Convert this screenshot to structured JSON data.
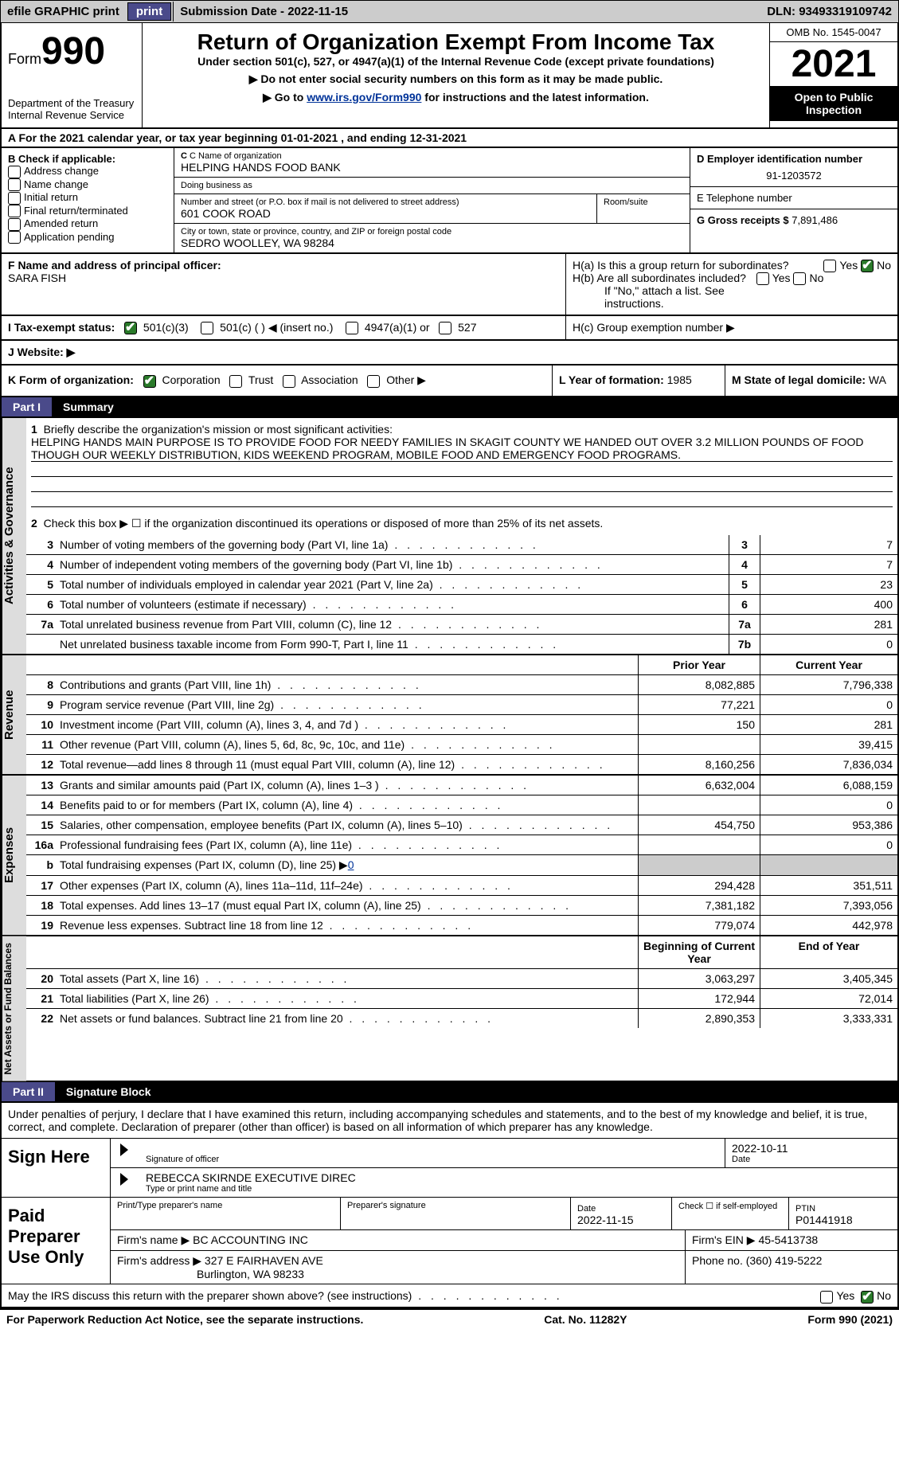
{
  "topbar": {
    "efile": "efile GRAPHIC print",
    "submission_label": "Submission Date - ",
    "submission_date": "2022-11-15",
    "dln_label": "DLN: ",
    "dln": "93493319109742"
  },
  "header": {
    "form": "Form",
    "form_no": "990",
    "dept": "Department of the Treasury",
    "irs": "Internal Revenue Service",
    "title": "Return of Organization Exempt From Income Tax",
    "sub1": "Under section 501(c), 527, or 4947(a)(1) of the Internal Revenue Code (except private foundations)",
    "sub2": "▶ Do not enter social security numbers on this form as it may be made public.",
    "sub3_pre": "▶ Go to ",
    "sub3_link": "www.irs.gov/Form990",
    "sub3_post": " for instructions and the latest information.",
    "omb": "OMB No. 1545-0047",
    "year": "2021",
    "open": "Open to Public Inspection"
  },
  "a": {
    "text_pre": "A For the 2021 calendar year, or tax year beginning ",
    "begin": "01-01-2021",
    "mid": " , and ending ",
    "end": "12-31-2021"
  },
  "b": {
    "label": "B Check if applicable:",
    "opts": [
      "Address change",
      "Name change",
      "Initial return",
      "Final return/terminated",
      "Amended return",
      "Application pending"
    ]
  },
  "c": {
    "name_lbl": "C Name of organization",
    "name": "HELPING HANDS FOOD BANK",
    "dba_lbl": "Doing business as",
    "dba": "",
    "street_lbl": "Number and street (or P.O. box if mail is not delivered to street address)",
    "room_lbl": "Room/suite",
    "street": "601 COOK ROAD",
    "city_lbl": "City or town, state or province, country, and ZIP or foreign postal code",
    "city": "SEDRO WOOLLEY, WA  98284"
  },
  "d": {
    "lbl": "D Employer identification number",
    "val": "91-1203572"
  },
  "e": {
    "lbl": "E Telephone number",
    "val": ""
  },
  "g": {
    "lbl": "G Gross receipts $ ",
    "val": "7,891,486"
  },
  "f": {
    "lbl": "F  Name and address of principal officer:",
    "name": "SARA FISH"
  },
  "h": {
    "a": "H(a)  Is this a group return for subordinates?",
    "b": "H(b)  Are all subordinates included?",
    "note": "If \"No,\" attach a list. See instructions.",
    "c": "H(c)  Group exemption number ▶",
    "yes": "Yes",
    "no": "No"
  },
  "i": {
    "lbl": "I   Tax-exempt status:",
    "o1": "501(c)(3)",
    "o2": "501(c) (  ) ◀ (insert no.)",
    "o3": "4947(a)(1) or",
    "o4": "527"
  },
  "j": {
    "lbl": "J   Website: ▶"
  },
  "k": {
    "lbl": "K Form of organization:",
    "o1": "Corporation",
    "o2": "Trust",
    "o3": "Association",
    "o4": "Other ▶"
  },
  "l": {
    "lbl": "L Year of formation: ",
    "val": "1985"
  },
  "m": {
    "lbl": "M State of legal domicile: ",
    "val": "WA"
  },
  "part1": {
    "label": "Part I",
    "title": "Summary"
  },
  "part2": {
    "label": "Part II",
    "title": "Signature Block"
  },
  "tabs": {
    "ag": "Activities & Governance",
    "rev": "Revenue",
    "exp": "Expenses",
    "na": "Net Assets or Fund Balances"
  },
  "summary": {
    "q1": "Briefly describe the organization's mission or most significant activities:",
    "mission": "HELPING HANDS MAIN PURPOSE IS TO PROVIDE FOOD FOR NEEDY FAMILIES IN SKAGIT COUNTY WE HANDED OUT OVER 3.2 MILLION POUNDS OF FOOD THOUGH OUR WEEKLY DISTRIBUTION, KIDS WEEKEND PROGRAM, MOBILE FOOD AND EMERGENCY FOOD PROGRAMS.",
    "q2": "Check this box ▶ ☐  if the organization discontinued its operations or disposed of more than 25% of its net assets.",
    "lines": [
      {
        "n": "3",
        "d": "Number of voting members of the governing body (Part VI, line 1a)",
        "b": "3",
        "v": "7"
      },
      {
        "n": "4",
        "d": "Number of independent voting members of the governing body (Part VI, line 1b)",
        "b": "4",
        "v": "7"
      },
      {
        "n": "5",
        "d": "Total number of individuals employed in calendar year 2021 (Part V, line 2a)",
        "b": "5",
        "v": "23"
      },
      {
        "n": "6",
        "d": "Total number of volunteers (estimate if necessary)",
        "b": "6",
        "v": "400"
      },
      {
        "n": "7a",
        "d": "Total unrelated business revenue from Part VIII, column (C), line 12",
        "b": "7a",
        "v": "281"
      },
      {
        "n": "",
        "d": "Net unrelated business taxable income from Form 990-T, Part I, line 11",
        "b": "7b",
        "v": "0"
      }
    ],
    "col_prior": "Prior Year",
    "col_current": "Current Year",
    "col_boy": "Beginning of Current Year",
    "col_eoy": "End of Year",
    "rev": [
      {
        "n": "8",
        "d": "Contributions and grants (Part VIII, line 1h)",
        "p": "8,082,885",
        "c": "7,796,338"
      },
      {
        "n": "9",
        "d": "Program service revenue (Part VIII, line 2g)",
        "p": "77,221",
        "c": "0"
      },
      {
        "n": "10",
        "d": "Investment income (Part VIII, column (A), lines 3, 4, and 7d )",
        "p": "150",
        "c": "281"
      },
      {
        "n": "11",
        "d": "Other revenue (Part VIII, column (A), lines 5, 6d, 8c, 9c, 10c, and 11e)",
        "p": "",
        "c": "39,415"
      },
      {
        "n": "12",
        "d": "Total revenue—add lines 8 through 11 (must equal Part VIII, column (A), line 12)",
        "p": "8,160,256",
        "c": "7,836,034"
      }
    ],
    "exp": [
      {
        "n": "13",
        "d": "Grants and similar amounts paid (Part IX, column (A), lines 1–3 )",
        "p": "6,632,004",
        "c": "6,088,159"
      },
      {
        "n": "14",
        "d": "Benefits paid to or for members (Part IX, column (A), line 4)",
        "p": "",
        "c": "0"
      },
      {
        "n": "15",
        "d": "Salaries, other compensation, employee benefits (Part IX, column (A), lines 5–10)",
        "p": "454,750",
        "c": "953,386"
      },
      {
        "n": "16a",
        "d": "Professional fundraising fees (Part IX, column (A), line 11e)",
        "p": "",
        "c": "0"
      },
      {
        "n": "b",
        "d": "Total fundraising expenses (Part IX, column (D), line 25) ▶",
        "p": "grey",
        "c": "grey",
        "fund": "0"
      },
      {
        "n": "17",
        "d": "Other expenses (Part IX, column (A), lines 11a–11d, 11f–24e)",
        "p": "294,428",
        "c": "351,511"
      },
      {
        "n": "18",
        "d": "Total expenses. Add lines 13–17 (must equal Part IX, column (A), line 25)",
        "p": "7,381,182",
        "c": "7,393,056"
      },
      {
        "n": "19",
        "d": "Revenue less expenses. Subtract line 18 from line 12",
        "p": "779,074",
        "c": "442,978"
      }
    ],
    "na": [
      {
        "n": "20",
        "d": "Total assets (Part X, line 16)",
        "p": "3,063,297",
        "c": "3,405,345"
      },
      {
        "n": "21",
        "d": "Total liabilities (Part X, line 26)",
        "p": "172,944",
        "c": "72,014"
      },
      {
        "n": "22",
        "d": "Net assets or fund balances. Subtract line 21 from line 20",
        "p": "2,890,353",
        "c": "3,333,331"
      }
    ]
  },
  "sig": {
    "penalty": "Under penalties of perjury, I declare that I have examined this return, including accompanying schedules and statements, and to the best of my knowledge and belief, it is true, correct, and complete. Declaration of preparer (other than officer) is based on all information of which preparer has any knowledge.",
    "sign_here": "Sign Here",
    "sig_officer": "Signature of officer",
    "date": "Date",
    "date_val": "2022-10-11",
    "officer_name": "REBECCA SKIRNDE  EXECUTIVE DIREC",
    "type_name": "Type or print name and title",
    "paid": "Paid Preparer Use Only",
    "prep_name_lbl": "Print/Type preparer's name",
    "prep_sig_lbl": "Preparer's signature",
    "prep_date_lbl": "Date",
    "prep_date": "2022-11-15",
    "check_if": "Check ☐ if self-employed",
    "ptin_lbl": "PTIN",
    "ptin": "P01441918",
    "firm_name_lbl": "Firm's name    ▶ ",
    "firm_name": "BC ACCOUNTING INC",
    "firm_ein_lbl": "Firm's EIN ▶ ",
    "firm_ein": "45-5413738",
    "firm_addr_lbl": "Firm's address ▶ ",
    "firm_addr1": "327 E FAIRHAVEN AVE",
    "firm_addr2": "Burlington, WA  98233",
    "phone_lbl": "Phone no. ",
    "phone": "(360) 419-5222",
    "may": "May the IRS discuss this return with the preparer shown above? (see instructions)"
  },
  "footer": {
    "l": "For Paperwork Reduction Act Notice, see the separate instructions.",
    "m": "Cat. No. 11282Y",
    "r": "Form 990 (2021)"
  }
}
